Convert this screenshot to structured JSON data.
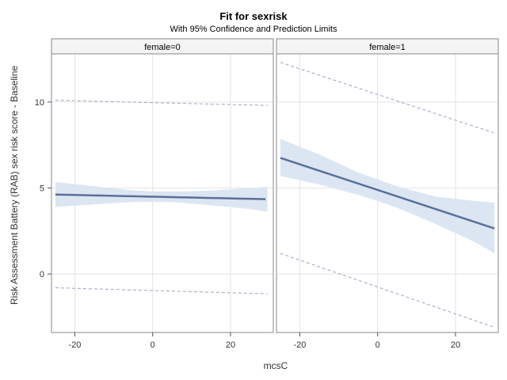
{
  "chart_data": {
    "type": "line",
    "title": "Fit for sexrisk",
    "subtitle": "With 95% Confidence and Prediction Limits",
    "xlabel": "mcsC",
    "ylabel": "Risk Assessment Battery (RAB) sex risk score - Baseline",
    "xlim": [
      -26,
      31
    ],
    "ylim": [
      -3.4,
      12.8
    ],
    "x_ticks": [
      -20,
      0,
      20
    ],
    "y_ticks": [
      0,
      5,
      10
    ],
    "grid": true,
    "colors": {
      "fit_line": "#5b6f99",
      "band_fill": "#dce6f3",
      "prediction_line": "#9aa3c8",
      "frame": "#888888",
      "grid": "#e4e4e4",
      "header_fill": "#f4f4f4"
    },
    "panels": [
      {
        "label": "female=0",
        "fit": {
          "x": [
            -25,
            -23,
            -21,
            -19,
            -17,
            -15,
            -13,
            -11,
            -9,
            -7,
            -5,
            -3,
            -1,
            1,
            3,
            5,
            7,
            9,
            11,
            13,
            15,
            17,
            19,
            21,
            23,
            25,
            27,
            29
          ],
          "y": [
            4.62,
            4.61,
            4.6,
            4.59,
            4.58,
            4.57,
            4.56,
            4.55,
            4.54,
            4.53,
            4.52,
            4.51,
            4.5,
            4.49,
            4.48,
            4.47,
            4.46,
            4.45,
            4.44,
            4.43,
            4.42,
            4.41,
            4.4,
            4.39,
            4.38,
            4.37,
            4.36,
            4.35
          ]
        },
        "confidence_band": {
          "x": [
            -25,
            -15,
            -5,
            0,
            5,
            15,
            25,
            29.5
          ],
          "lower": [
            3.9,
            4.05,
            4.18,
            4.2,
            4.18,
            4.0,
            3.78,
            3.62
          ],
          "upper": [
            5.35,
            5.1,
            4.86,
            4.8,
            4.78,
            4.85,
            5.0,
            5.08
          ]
        },
        "prediction_limits": {
          "x": [
            -25,
            29.5
          ],
          "lower": [
            -0.8,
            -1.15
          ],
          "upper": [
            10.1,
            9.8
          ]
        }
      },
      {
        "label": "female=1",
        "fit": {
          "x": [
            -25,
            30
          ],
          "y": [
            6.75,
            2.65
          ]
        },
        "confidence_band": {
          "x": [
            -25,
            -15,
            -5,
            0,
            5,
            15,
            25,
            30
          ],
          "lower": [
            5.7,
            5.2,
            4.6,
            4.25,
            3.85,
            2.9,
            1.85,
            1.2
          ],
          "upper": [
            7.85,
            6.95,
            5.9,
            5.5,
            5.1,
            4.5,
            4.25,
            4.15
          ]
        },
        "prediction_limits": {
          "x": [
            -25,
            30
          ],
          "lower": [
            1.2,
            -3.1
          ],
          "upper": [
            12.3,
            8.2
          ]
        }
      }
    ]
  }
}
